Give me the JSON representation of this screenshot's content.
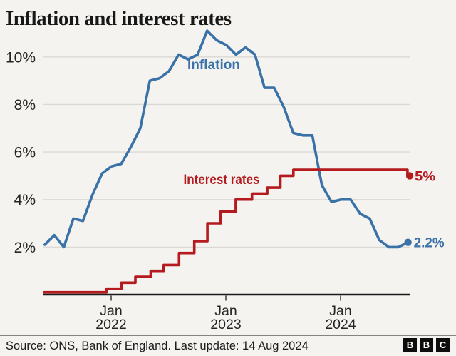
{
  "title": "Inflation and interest rates",
  "footer": {
    "source": "Source: ONS, Bank of England. Last update: 14 Aug 2024",
    "logo_letters": [
      "B",
      "B",
      "C"
    ]
  },
  "colors": {
    "inflation_blue": "#3a72a8",
    "rates_red": "#b41a1e",
    "grid": "#dbd9d5",
    "axis": "#1a1a1a",
    "text": "#242424",
    "background": "#f4f3ef"
  },
  "chart_data": {
    "type": "line",
    "title": "Inflation and interest rates",
    "unit": "percent",
    "grid": "horizontal",
    "legend_position": "inline-labels",
    "y_axis": {
      "range": [
        0,
        11.5
      ],
      "ticks": [
        {
          "value": 2,
          "label": "2%"
        },
        {
          "value": 4,
          "label": "4%"
        },
        {
          "value": 6,
          "label": "6%"
        },
        {
          "value": 8,
          "label": "8%"
        },
        {
          "value": 10,
          "label": "10%"
        }
      ]
    },
    "x_axis": {
      "range": [
        "2021-06",
        "2024-08"
      ],
      "ticks": [
        {
          "date": "2022-01",
          "top": "Jan",
          "bottom": "2022"
        },
        {
          "date": "2023-01",
          "top": "Jan",
          "bottom": "2023"
        },
        {
          "date": "2024-01",
          "top": "Jan",
          "bottom": "2024"
        }
      ]
    },
    "series": [
      {
        "name": "Inflation",
        "label": "Inflation",
        "end_label": "2.2%",
        "color": "#3a72a8",
        "style": "line",
        "frequency": "monthly",
        "start_month": "2021-05",
        "values": [
          2.1,
          2.5,
          2.0,
          3.2,
          3.1,
          4.2,
          5.1,
          5.4,
          5.5,
          6.2,
          7.0,
          9.0,
          9.1,
          9.4,
          10.1,
          9.9,
          10.1,
          11.1,
          10.7,
          10.5,
          10.1,
          10.4,
          10.1,
          8.7,
          8.7,
          7.9,
          6.8,
          6.7,
          6.7,
          4.6,
          3.9,
          4.0,
          4.0,
          3.4,
          3.2,
          2.3,
          2.0,
          2.0,
          2.2
        ]
      },
      {
        "name": "Interest rates",
        "label": "Interest rates",
        "end_label": "5%",
        "color": "#b41a1e",
        "style": "step",
        "changes": [
          [
            "2021-06-01",
            0.1
          ],
          [
            "2021-12-16",
            0.25
          ],
          [
            "2022-02-03",
            0.5
          ],
          [
            "2022-03-17",
            0.75
          ],
          [
            "2022-05-05",
            1.0
          ],
          [
            "2022-06-16",
            1.25
          ],
          [
            "2022-08-04",
            1.75
          ],
          [
            "2022-09-22",
            2.25
          ],
          [
            "2022-11-03",
            3.0
          ],
          [
            "2022-12-15",
            3.5
          ],
          [
            "2023-02-02",
            4.0
          ],
          [
            "2023-03-23",
            4.25
          ],
          [
            "2023-05-11",
            4.5
          ],
          [
            "2023-06-22",
            5.0
          ],
          [
            "2023-08-03",
            5.25
          ],
          [
            "2024-08-01",
            5.0
          ]
        ],
        "end_date": "2024-08-08"
      }
    ]
  }
}
